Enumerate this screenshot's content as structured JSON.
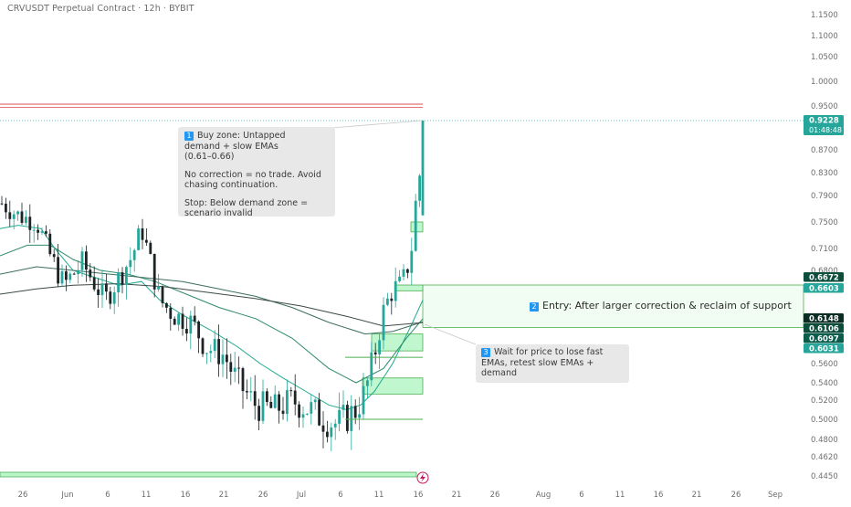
{
  "header": {
    "title": "CRVUSDT Perpetual Contract · 12h · BYBIT"
  },
  "price_axis": {
    "ticks": [
      "1.1500",
      "1.1000",
      "1.0500",
      "1.0000",
      "0.9500",
      "0.8700",
      "0.8300",
      "0.7900",
      "0.7500",
      "0.7100",
      "0.6800",
      "0.5600",
      "0.5400",
      "0.5200",
      "0.5000",
      "0.4800",
      "0.4620",
      "0.4450"
    ],
    "labels": [
      {
        "text": "0.9228",
        "sub": "01:48:48",
        "color": "#26a69a"
      },
      {
        "text": "0.6672",
        "color": "#0d4d3c"
      },
      {
        "text": "0.6603",
        "color": "#26a69a"
      },
      {
        "text": "0.6148",
        "color": "#0b2c23"
      },
      {
        "text": "0.6106",
        "color": "#0d4d3c"
      },
      {
        "text": "0.6097",
        "color": "#0a5c4c"
      },
      {
        "text": "0.6031",
        "color": "#26a69a"
      }
    ]
  },
  "time_axis": {
    "ticks": [
      "26",
      "Jun",
      "6",
      "11",
      "16",
      "21",
      "26",
      "Jul",
      "6",
      "11",
      "16",
      "21",
      "26",
      "Aug",
      "6",
      "11",
      "16",
      "21",
      "26",
      "Sep"
    ]
  },
  "annotations": {
    "buy_zone": {
      "badge": "1",
      "line1": "Buy zone: Untapped",
      "line2": "demand + slow EMAs",
      "line3": "(0.61–0.66)",
      "line4": "No correction = no trade. Avoid",
      "line5": "chasing continuation.",
      "line6": "Stop: Below demand zone =",
      "line7": "scenario invalid"
    },
    "entry": {
      "badge": "2",
      "text": "Entry: After larger correction & reclaim of support"
    },
    "wait": {
      "badge": "3",
      "line1": "Wait for price to lose fast",
      "line2": "EMAs, retest slow EMAs +",
      "line3": "demand"
    }
  },
  "colors": {
    "up": "#26a69a",
    "down": "#1e2326",
    "zone_fill": "#b9f6ca",
    "zone_border": "#4caf50",
    "resistance": "#e57373",
    "ema_fast": "#1faa8f",
    "ema_mid": "#2e8b6b",
    "ema_slow": "#3b6e5e",
    "ema_slowest": "#3c4a46"
  },
  "chart_data": {
    "type": "candlestick",
    "title": "CRVUSDT Perpetual Contract · 12h · BYBIT",
    "timeframe": "12h",
    "x": [
      "May 26",
      "Jun 1",
      "Jun 6",
      "Jun 11",
      "Jun 16",
      "Jun 21",
      "Jun 26",
      "Jul 1",
      "Jul 6",
      "Jul 11",
      "Jul 16"
    ],
    "close": [
      0.75,
      0.66,
      0.7,
      0.74,
      0.66,
      0.57,
      0.51,
      0.5,
      0.5,
      0.62,
      0.9228
    ],
    "last_price": 0.9228,
    "countdown": "01:48:48",
    "ema_values_last": [
      0.6672,
      0.6148,
      0.6106,
      0.6097
    ],
    "demand_zone": [
      0.6031,
      0.6603
    ],
    "resistance_level": 0.95,
    "ylim": [
      0.445,
      1.15
    ],
    "legend": "none",
    "grid": false
  }
}
